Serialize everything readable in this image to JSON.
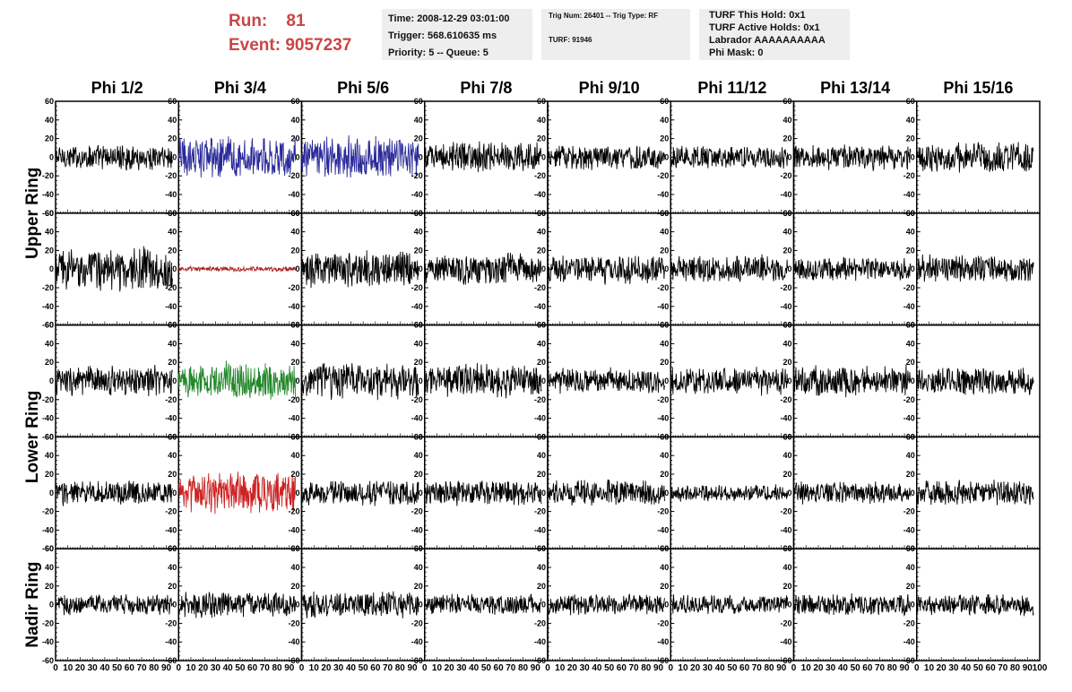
{
  "header": {
    "run_label": "Run:",
    "run_value": "81",
    "event_label": "Event:",
    "event_value": "9057237",
    "time": "Time: 2008-12-29 03:01:00",
    "trigger": "Trigger: 568.610635 ms",
    "priority": "Priority: 5 -- Queue: 5",
    "trig_num": "Trig Num: 26401 -- Trig Type: RF",
    "turf": "TURF: 91946",
    "turf_this_hold": "TURF This Hold: 0x1",
    "turf_active_holds": "TURF Active Holds: 0x1",
    "labrador": "Labrador AAAAAAAAAA",
    "phi_mask": "Phi Mask: 0"
  },
  "chart_data": {
    "type": "line",
    "columns": [
      "Phi 1/2",
      "Phi 3/4",
      "Phi 5/6",
      "Phi 7/8",
      "Phi 9/10",
      "Phi 11/12",
      "Phi 13/14",
      "Phi 15/16"
    ],
    "ring_labels": [
      "Upper Ring",
      "Lower Ring",
      "Nadir Ring"
    ],
    "rows": 5,
    "ylim": [
      -60,
      60
    ],
    "y_ticks": [
      "60",
      "40",
      "20",
      "0",
      "-20",
      "-40",
      "-60"
    ],
    "xlim": [
      0,
      100
    ],
    "x_ticks": [
      "0",
      "10",
      "20",
      "30",
      "40",
      "50",
      "60",
      "70",
      "80",
      "90",
      "100"
    ],
    "panels": [
      {
        "row": 0,
        "col": 0,
        "color": "#000000",
        "amplitude": 15,
        "start": 0,
        "end": 95
      },
      {
        "row": 0,
        "col": 1,
        "color": "#2a2a9a",
        "amplitude": 25,
        "start": 0,
        "end": 95
      },
      {
        "row": 0,
        "col": 2,
        "color": "#2a2a9a",
        "amplitude": 25,
        "start": 0,
        "end": 95
      },
      {
        "row": 0,
        "col": 3,
        "color": "#000000",
        "amplitude": 18,
        "start": 0,
        "end": 95
      },
      {
        "row": 0,
        "col": 4,
        "color": "#000000",
        "amplitude": 15,
        "start": 0,
        "end": 95
      },
      {
        "row": 0,
        "col": 5,
        "color": "#000000",
        "amplitude": 14,
        "start": 0,
        "end": 95
      },
      {
        "row": 0,
        "col": 6,
        "color": "#000000",
        "amplitude": 15,
        "start": 0,
        "end": 95
      },
      {
        "row": 0,
        "col": 7,
        "color": "#000000",
        "amplitude": 18,
        "start": 0,
        "end": 95
      },
      {
        "row": 1,
        "col": 0,
        "color": "#000000",
        "amplitude": 25,
        "start": 0,
        "end": 95
      },
      {
        "row": 1,
        "col": 1,
        "color": "#aa2222",
        "amplitude": 3,
        "start": 0,
        "end": 95
      },
      {
        "row": 1,
        "col": 2,
        "color": "#000000",
        "amplitude": 22,
        "start": 0,
        "end": 95
      },
      {
        "row": 1,
        "col": 3,
        "color": "#000000",
        "amplitude": 20,
        "start": 0,
        "end": 95
      },
      {
        "row": 1,
        "col": 4,
        "color": "#000000",
        "amplitude": 17,
        "start": 0,
        "end": 95
      },
      {
        "row": 1,
        "col": 5,
        "color": "#000000",
        "amplitude": 16,
        "start": 0,
        "end": 95
      },
      {
        "row": 1,
        "col": 6,
        "color": "#000000",
        "amplitude": 14,
        "start": 0,
        "end": 95
      },
      {
        "row": 1,
        "col": 7,
        "color": "#000000",
        "amplitude": 17,
        "start": 0,
        "end": 95
      },
      {
        "row": 2,
        "col": 0,
        "color": "#000000",
        "amplitude": 18,
        "start": 0,
        "end": 95
      },
      {
        "row": 2,
        "col": 1,
        "color": "#22882a",
        "amplitude": 22,
        "start": 0,
        "end": 95
      },
      {
        "row": 2,
        "col": 2,
        "color": "#000000",
        "amplitude": 22,
        "start": 0,
        "end": 95
      },
      {
        "row": 2,
        "col": 3,
        "color": "#000000",
        "amplitude": 20,
        "start": 0,
        "end": 95
      },
      {
        "row": 2,
        "col": 4,
        "color": "#000000",
        "amplitude": 15,
        "start": 0,
        "end": 95
      },
      {
        "row": 2,
        "col": 5,
        "color": "#000000",
        "amplitude": 16,
        "start": 0,
        "end": 95
      },
      {
        "row": 2,
        "col": 6,
        "color": "#000000",
        "amplitude": 18,
        "start": 0,
        "end": 95
      },
      {
        "row": 2,
        "col": 7,
        "color": "#000000",
        "amplitude": 16,
        "start": 0,
        "end": 95
      },
      {
        "row": 3,
        "col": 0,
        "color": "#000000",
        "amplitude": 15,
        "start": 0,
        "end": 95
      },
      {
        "row": 3,
        "col": 1,
        "color": "#cc2222",
        "amplitude": 25,
        "start": 0,
        "end": 95
      },
      {
        "row": 3,
        "col": 2,
        "color": "#000000",
        "amplitude": 15,
        "start": 0,
        "end": 95
      },
      {
        "row": 3,
        "col": 3,
        "color": "#000000",
        "amplitude": 15,
        "start": 0,
        "end": 95
      },
      {
        "row": 3,
        "col": 4,
        "color": "#000000",
        "amplitude": 15,
        "start": 0,
        "end": 95
      },
      {
        "row": 3,
        "col": 5,
        "color": "#000000",
        "amplitude": 10,
        "start": 0,
        "end": 95
      },
      {
        "row": 3,
        "col": 6,
        "color": "#000000",
        "amplitude": 13,
        "start": 0,
        "end": 95
      },
      {
        "row": 3,
        "col": 7,
        "color": "#000000",
        "amplitude": 15,
        "start": 0,
        "end": 95
      },
      {
        "row": 4,
        "col": 0,
        "color": "#000000",
        "amplitude": 12,
        "start": 0,
        "end": 95
      },
      {
        "row": 4,
        "col": 1,
        "color": "#000000",
        "amplitude": 15,
        "start": 0,
        "end": 95
      },
      {
        "row": 4,
        "col": 2,
        "color": "#000000",
        "amplitude": 15,
        "start": 0,
        "end": 95
      },
      {
        "row": 4,
        "col": 3,
        "color": "#000000",
        "amplitude": 12,
        "start": 0,
        "end": 95
      },
      {
        "row": 4,
        "col": 4,
        "color": "#000000",
        "amplitude": 12,
        "start": 0,
        "end": 95
      },
      {
        "row": 4,
        "col": 5,
        "color": "#000000",
        "amplitude": 12,
        "start": 0,
        "end": 95
      },
      {
        "row": 4,
        "col": 6,
        "color": "#000000",
        "amplitude": 13,
        "start": 0,
        "end": 95
      },
      {
        "row": 4,
        "col": 7,
        "color": "#000000",
        "amplitude": 13,
        "start": 0,
        "end": 95
      }
    ]
  }
}
